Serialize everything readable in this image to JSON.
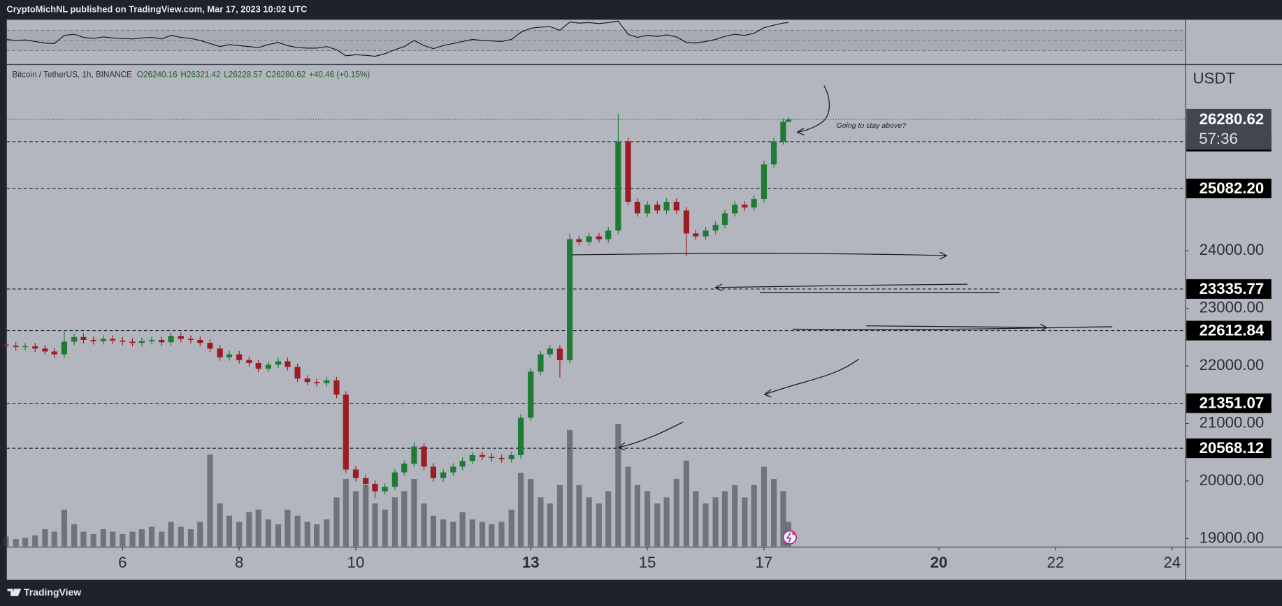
{
  "header": {
    "publisher_line": "CryptoMichNL published on TradingView.com, Mar 17, 2023 10:02 UTC"
  },
  "footer": {
    "brand": "TradingView"
  },
  "chart_data": {
    "type": "candlestick",
    "symbol": "Bitcoin / TetherUS, 1h, BINANCE",
    "legend_labels": {
      "open": "O",
      "high": "H",
      "low": "L",
      "close": "C"
    },
    "change_label": "+40.46 (+0.15%)",
    "currency": "USDT",
    "countdown": "57:36",
    "annotation": "Going to stay above?",
    "up_color": "#1f7a34",
    "down_color": "#9c1c22",
    "volume_color": "#3a3d46",
    "x": [
      4,
      4.17,
      4.33,
      4.5,
      4.67,
      4.83,
      5,
      5.17,
      5.33,
      5.5,
      5.67,
      5.83,
      6,
      6.17,
      6.33,
      6.5,
      6.67,
      6.83,
      7,
      7.17,
      7.33,
      7.5,
      7.67,
      7.83,
      8,
      8.17,
      8.33,
      8.5,
      8.67,
      8.83,
      9,
      9.17,
      9.33,
      9.5,
      9.67,
      9.83,
      10,
      10.17,
      10.33,
      10.5,
      10.67,
      10.83,
      11,
      11.17,
      11.33,
      11.5,
      11.67,
      11.83,
      12,
      12.17,
      12.33,
      12.5,
      12.67,
      12.83,
      13,
      13.17,
      13.33,
      13.5,
      13.67,
      13.83,
      14,
      14.17,
      14.33,
      14.5,
      14.67,
      14.83,
      15,
      15.17,
      15.33,
      15.5,
      15.67,
      15.83,
      16,
      16.17,
      16.33,
      16.5,
      16.67,
      16.83,
      17,
      17.17,
      17.33,
      17.42
    ],
    "open": [
      22370,
      22350,
      22330,
      22340,
      22300,
      22250,
      22200,
      22420,
      22500,
      22450,
      22430,
      22470,
      22440,
      22420,
      22400,
      22430,
      22450,
      22410,
      22520,
      22470,
      22450,
      22400,
      22300,
      22150,
      22200,
      22100,
      22050,
      21950,
      22020,
      22080,
      21980,
      21780,
      21720,
      21700,
      21750,
      21500,
      20200,
      20050,
      19950,
      19820,
      19900,
      20150,
      20300,
      20600,
      20250,
      20050,
      20150,
      20250,
      20350,
      20450,
      20420,
      20400,
      20380,
      20450,
      21100,
      21900,
      22200,
      22300,
      22100,
      24200,
      24150,
      24250,
      24200,
      24350,
      25900,
      24850,
      24650,
      24800,
      24700,
      24850,
      24700,
      24300,
      24250,
      24350,
      24450,
      24650,
      24800,
      24750,
      24900,
      25500,
      25900,
      26240.16
    ],
    "high": [
      22430,
      22410,
      22400,
      22400,
      22360,
      22310,
      22620,
      22560,
      22560,
      22510,
      22530,
      22530,
      22500,
      22480,
      22490,
      22510,
      22510,
      22580,
      22580,
      22530,
      22510,
      22460,
      22360,
      22260,
      22260,
      22160,
      22110,
      22080,
      22140,
      22140,
      22040,
      21840,
      21780,
      21810,
      21810,
      21560,
      20260,
      20110,
      20010,
      19960,
      20210,
      20360,
      20680,
      20660,
      20310,
      20210,
      20310,
      20410,
      20510,
      20510,
      20480,
      20460,
      20510,
      21160,
      21960,
      22260,
      22360,
      22360,
      24300,
      24260,
      24310,
      24310,
      24410,
      26380,
      25960,
      24910,
      24860,
      24860,
      24910,
      24910,
      24760,
      24360,
      24410,
      24510,
      24710,
      24860,
      24860,
      24960,
      25560,
      25960,
      26300,
      26321.42
    ],
    "low": [
      22290,
      22270,
      22270,
      22240,
      22190,
      22140,
      22140,
      22360,
      22390,
      22370,
      22370,
      22380,
      22360,
      22340,
      22340,
      22370,
      22350,
      22350,
      22410,
      22390,
      22340,
      22240,
      22090,
      22090,
      22040,
      21990,
      21890,
      21890,
      21960,
      21920,
      21720,
      21660,
      21640,
      21640,
      21440,
      20140,
      19990,
      19890,
      19700,
      19760,
      19840,
      20090,
      20240,
      20190,
      19990,
      19990,
      20090,
      20190,
      20290,
      20360,
      20340,
      20320,
      20320,
      20390,
      21040,
      21840,
      22140,
      21800,
      22040,
      24090,
      24090,
      24140,
      24140,
      24290,
      24790,
      24590,
      24590,
      24640,
      24640,
      24640,
      23900,
      24190,
      24190,
      24290,
      24390,
      24590,
      24690,
      24690,
      24840,
      25440,
      25840,
      26228.57
    ],
    "close": [
      22350,
      22330,
      22340,
      22300,
      22250,
      22200,
      22420,
      22500,
      22450,
      22430,
      22470,
      22440,
      22420,
      22400,
      22430,
      22450,
      22410,
      22520,
      22470,
      22450,
      22400,
      22300,
      22150,
      22200,
      22100,
      22050,
      21950,
      22020,
      22080,
      21980,
      21780,
      21720,
      21700,
      21750,
      21500,
      20200,
      20050,
      19950,
      19820,
      19900,
      20150,
      20300,
      20600,
      20250,
      20050,
      20150,
      20250,
      20350,
      20450,
      20420,
      20400,
      20380,
      20450,
      21100,
      21900,
      22200,
      22300,
      22100,
      24200,
      24150,
      24250,
      24200,
      24350,
      25900,
      24850,
      24650,
      24800,
      24700,
      24850,
      24700,
      24300,
      24250,
      24350,
      24450,
      24650,
      24800,
      24750,
      24900,
      25500,
      25900,
      26240.16,
      26280.62
    ],
    "volume": [
      8,
      6,
      7,
      9,
      14,
      12,
      30,
      18,
      12,
      10,
      14,
      12,
      10,
      12,
      14,
      16,
      12,
      20,
      16,
      14,
      20,
      75,
      35,
      25,
      20,
      28,
      30,
      22,
      18,
      30,
      25,
      20,
      18,
      22,
      40,
      55,
      45,
      50,
      35,
      30,
      40,
      45,
      55,
      35,
      25,
      22,
      20,
      28,
      22,
      20,
      18,
      20,
      30,
      60,
      55,
      40,
      35,
      50,
      95,
      50,
      40,
      35,
      45,
      100,
      65,
      50,
      45,
      35,
      40,
      55,
      70,
      45,
      35,
      40,
      45,
      50,
      40,
      50,
      65,
      55,
      45,
      20
    ],
    "xlim": [
      4.01,
      24.23
    ],
    "xticks": [
      6,
      8,
      10,
      13,
      15,
      17,
      20,
      22,
      24
    ],
    "ylim": [
      18851,
      27220
    ],
    "yticks": [
      {
        "value": 19000,
        "label": "19000.00"
      },
      {
        "value": 20000,
        "label": "20000.00"
      },
      {
        "value": 21000,
        "label": "21000.00"
      },
      {
        "value": 22000,
        "label": "22000.00"
      },
      {
        "value": 23000,
        "label": "23000.00"
      },
      {
        "value": 24000,
        "label": "24000.00"
      }
    ],
    "price_levels": [
      25894.67,
      {
        "value": 25082.2,
        "label": "25082.20"
      },
      23335.77,
      22612.84,
      21351.07,
      20568.12
    ],
    "rsi": {
      "values": [
        52,
        50,
        51,
        48,
        45,
        44,
        60,
        62,
        56,
        54,
        57,
        55,
        54,
        53,
        55,
        56,
        53,
        60,
        56,
        54,
        50,
        44,
        38,
        42,
        40,
        38,
        36,
        42,
        46,
        40,
        36,
        35,
        35,
        38,
        32,
        20,
        22,
        21,
        19,
        24,
        32,
        38,
        50,
        40,
        34,
        40,
        44,
        48,
        52,
        50,
        49,
        48,
        52,
        66,
        74,
        76,
        77,
        70,
        86,
        84,
        85,
        83,
        85,
        88,
        62,
        56,
        60,
        58,
        61,
        57,
        46,
        45,
        48,
        52,
        58,
        62,
        60,
        64,
        75,
        80,
        84,
        85
      ],
      "ylim": [
        4.4,
        90.8
      ],
      "levels": [
        30,
        50,
        70
      ],
      "color": "#131722"
    }
  }
}
